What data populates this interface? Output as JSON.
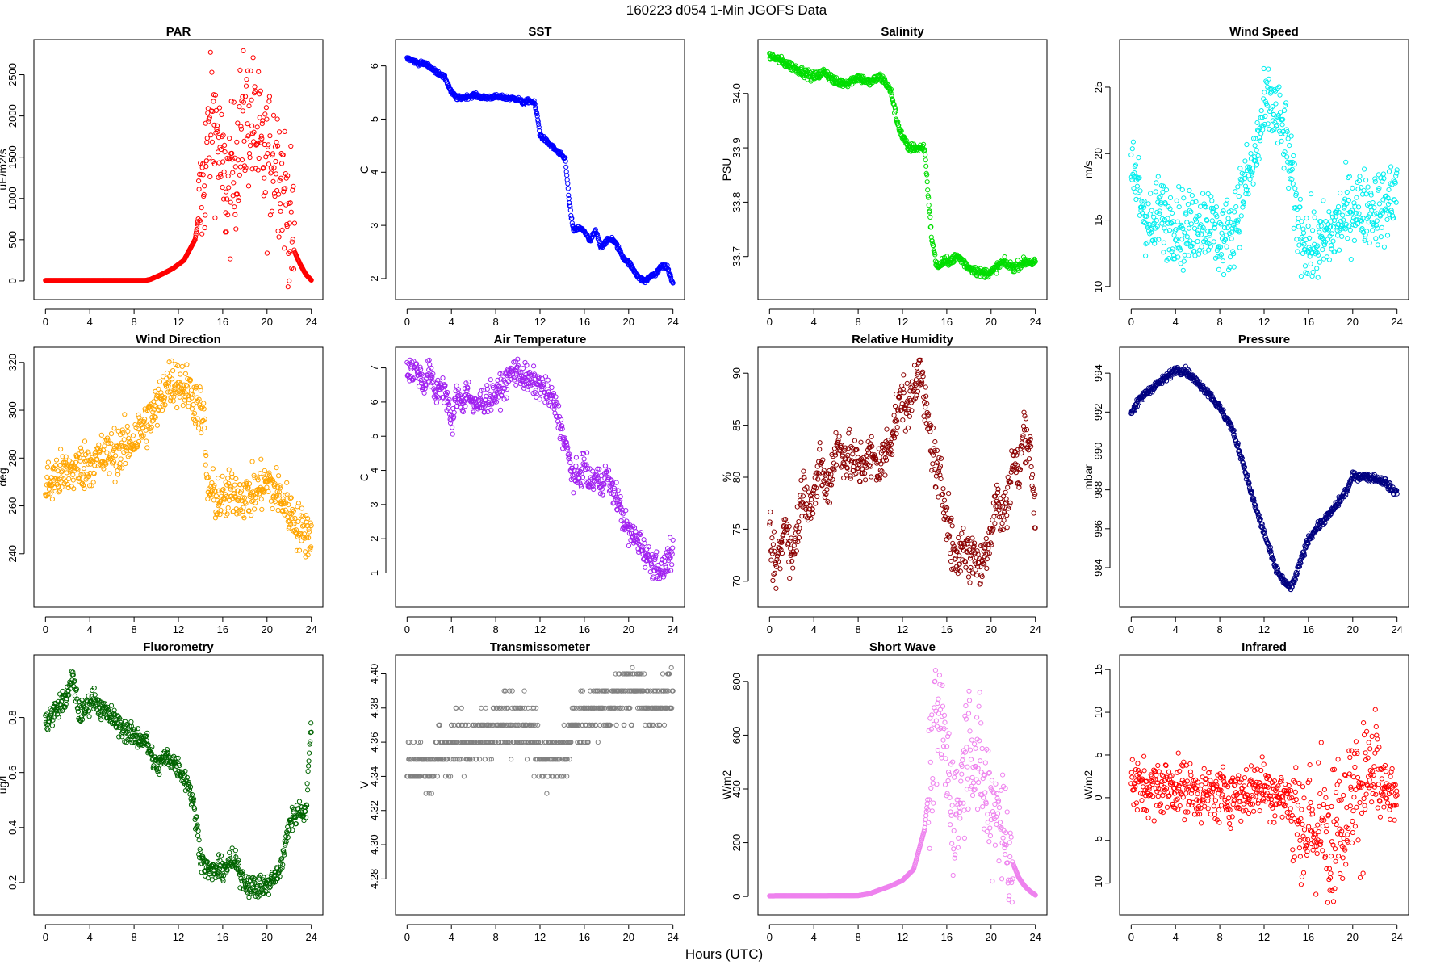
{
  "suptitle": "160223    d054    1-Min   JGOFS Data",
  "xlabel": "Hours (UTC)",
  "chart_data": [
    {
      "type": "scatter",
      "title": "PAR",
      "ylabel": "uE/m2/s",
      "color": "#ff0000",
      "xlim": [
        0,
        24
      ],
      "ylim": [
        -100,
        2800
      ],
      "xticks": [
        0,
        4,
        8,
        12,
        16,
        20,
        24
      ],
      "yticks": [
        0,
        500,
        1000,
        1500,
        2000,
        2500
      ],
      "ytick_labels": [
        "0",
        "500",
        "1000",
        "1500",
        "2000",
        "2500"
      ],
      "trend_x": [
        0,
        9,
        9.5,
        10.5,
        11.5,
        12.5,
        13.5,
        14.2,
        14.6,
        15,
        15.5,
        16,
        16.5,
        17,
        17.5,
        18,
        18.5,
        19,
        19.5,
        20,
        20.5,
        21,
        21.5,
        22,
        22.5,
        23,
        23.5,
        24
      ],
      "trend_y": [
        5,
        5,
        20,
        80,
        150,
        250,
        500,
        1100,
        1600,
        2000,
        1800,
        1200,
        1100,
        1300,
        1800,
        1900,
        2000,
        1800,
        1500,
        1400,
        1600,
        1500,
        1200,
        700,
        350,
        200,
        80,
        10
      ],
      "noise": 420,
      "noise_from": 13.8,
      "noise_to": 22.5
    },
    {
      "type": "scatter",
      "title": "SST",
      "ylabel": "C",
      "color": "#0000ff",
      "xlim": [
        0,
        24
      ],
      "ylim": [
        1.8,
        6.3
      ],
      "xticks": [
        0,
        4,
        8,
        12,
        16,
        20,
        24
      ],
      "yticks": [
        2,
        3,
        4,
        5,
        6
      ],
      "ytick_labels": [
        "2",
        "3",
        "4",
        "5",
        "6"
      ],
      "trend_x": [
        0,
        0.5,
        1,
        1.5,
        2,
        2.5,
        3,
        3.5,
        4,
        4.5,
        5,
        6,
        7,
        8,
        9,
        10,
        10.5,
        11,
        11.5,
        11.8,
        12,
        13,
        13.5,
        14,
        14.3,
        14.6,
        15,
        15.5,
        16,
        16.5,
        17,
        17.5,
        18,
        18.5,
        19,
        19.5,
        20,
        20.5,
        21,
        21.5,
        22,
        22.5,
        23,
        23.5,
        24
      ],
      "trend_y": [
        6.15,
        6.1,
        6.05,
        6.05,
        6.0,
        5.9,
        5.85,
        5.75,
        5.5,
        5.4,
        5.4,
        5.45,
        5.4,
        5.42,
        5.4,
        5.38,
        5.3,
        5.35,
        5.3,
        5.0,
        4.7,
        4.5,
        4.4,
        4.3,
        4.25,
        3.5,
        2.9,
        2.95,
        2.9,
        2.7,
        2.9,
        2.6,
        2.7,
        2.75,
        2.6,
        2.4,
        2.3,
        2.15,
        2.0,
        1.95,
        2.05,
        2.1,
        2.25,
        2.2,
        1.9
      ],
      "noise": 0.02,
      "noise_from": 0,
      "noise_to": 24
    },
    {
      "type": "scatter",
      "title": "Salinity",
      "ylabel": "PSU",
      "color": "#00dd00",
      "xlim": [
        0,
        24
      ],
      "ylim": [
        33.64,
        34.08
      ],
      "xticks": [
        0,
        4,
        8,
        12,
        16,
        20,
        24
      ],
      "yticks": [
        33.7,
        33.8,
        33.9,
        34.0
      ],
      "ytick_labels": [
        "33.7",
        "33.8",
        "33.9",
        "34.0"
      ],
      "trend_x": [
        0,
        1,
        2,
        3,
        4,
        5,
        6,
        7,
        8,
        9,
        10,
        10.5,
        11,
        11.5,
        12,
        12.5,
        13,
        14,
        14.3,
        14.6,
        15,
        15.3,
        15.6,
        16,
        17,
        18,
        19,
        20,
        21,
        22,
        23,
        24
      ],
      "trend_y": [
        34.07,
        34.06,
        34.05,
        34.04,
        34.03,
        34.04,
        34.02,
        34.02,
        34.03,
        34.02,
        34.03,
        34.02,
        34.0,
        33.95,
        33.92,
        33.9,
        33.9,
        33.9,
        33.82,
        33.74,
        33.69,
        33.68,
        33.69,
        33.69,
        33.7,
        33.68,
        33.67,
        33.67,
        33.69,
        33.68,
        33.69,
        33.69
      ],
      "noise": 0.004,
      "noise_from": 0,
      "noise_to": 24
    },
    {
      "type": "scatter",
      "title": "Wind Speed",
      "ylabel": "m/s",
      "color": "#00eeee",
      "xlim": [
        0,
        24
      ],
      "ylim": [
        9.8,
        27.8
      ],
      "xticks": [
        0,
        4,
        8,
        12,
        16,
        20,
        24
      ],
      "yticks": [
        10,
        15,
        20,
        25
      ],
      "ytick_labels": [
        "10",
        "15",
        "20",
        "25"
      ],
      "trend_x": [
        0,
        0.5,
        1,
        1.5,
        2,
        2.5,
        3,
        4,
        5,
        6,
        7,
        8,
        9,
        10,
        11,
        12,
        12.5,
        13,
        14,
        15,
        15.5,
        16,
        17,
        18,
        19,
        20,
        21,
        22,
        23,
        24
      ],
      "trend_y": [
        18,
        18,
        16,
        15,
        14,
        16,
        15,
        15,
        14,
        15,
        15,
        13.5,
        14,
        17,
        19,
        23,
        24,
        23,
        21,
        15,
        14,
        13,
        13,
        14,
        15,
        16,
        16,
        16,
        16,
        17.5
      ],
      "noise": 1.4,
      "noise_from": 0,
      "noise_to": 24
    },
    {
      "type": "scatter",
      "title": "Wind Direction",
      "ylabel": "deg",
      "color": "#ffa500",
      "xlim": [
        0,
        24
      ],
      "ylim": [
        222,
        322
      ],
      "xticks": [
        0,
        4,
        8,
        12,
        16,
        20,
        24
      ],
      "yticks": [
        240,
        260,
        280,
        300,
        320
      ],
      "ytick_labels": [
        "240",
        "260",
        "280",
        "300",
        "320"
      ],
      "trend_x": [
        0,
        1,
        2,
        3,
        4,
        5,
        6,
        7,
        8,
        9,
        10,
        11,
        12,
        13,
        14,
        14.3,
        14.6,
        15,
        16,
        17,
        18,
        19,
        20,
        21,
        22,
        23,
        24
      ],
      "trend_y": [
        268,
        272,
        274,
        276,
        278,
        280,
        282,
        284,
        288,
        294,
        300,
        312,
        312,
        308,
        300,
        296,
        268,
        265,
        262,
        266,
        264,
        266,
        270,
        265,
        258,
        250,
        248
      ],
      "noise": 5,
      "noise_from": 0,
      "noise_to": 24
    },
    {
      "type": "scatter",
      "title": "Air Temperature",
      "ylabel": "C",
      "color": "#a020f0",
      "xlim": [
        0,
        24
      ],
      "ylim": [
        0.3,
        7.3
      ],
      "xticks": [
        0,
        4,
        8,
        12,
        16,
        20,
        24
      ],
      "yticks": [
        1,
        2,
        3,
        4,
        5,
        6,
        7
      ],
      "ytick_labels": [
        "1",
        "2",
        "3",
        "4",
        "5",
        "6",
        "7"
      ],
      "trend_x": [
        0,
        0.5,
        1,
        1.5,
        2,
        2.5,
        3,
        3.5,
        4,
        4.5,
        5,
        5.5,
        6,
        7,
        8,
        9,
        9.5,
        10,
        11,
        12,
        13,
        13.5,
        14,
        14.5,
        15,
        15.5,
        16,
        16.5,
        17,
        17.5,
        18,
        18.5,
        19,
        19.5,
        20,
        21,
        22,
        22.5,
        23,
        23.5,
        24
      ],
      "trend_y": [
        7.0,
        6.95,
        6.9,
        6.5,
        7.0,
        6.2,
        6.5,
        6.3,
        5.3,
        6.2,
        6.0,
        6.4,
        5.8,
        6.1,
        6.2,
        6.6,
        6.9,
        6.9,
        6.6,
        6.5,
        6.1,
        5.8,
        5.1,
        4.5,
        3.8,
        3.8,
        4.2,
        3.6,
        3.8,
        3.6,
        3.9,
        3.4,
        3.2,
        2.6,
        2.2,
        1.9,
        1.3,
        1.3,
        1.0,
        1.4,
        1.6
      ],
      "noise": 0.2,
      "noise_from": 0,
      "noise_to": 24
    },
    {
      "type": "scatter",
      "title": "Relative Humidity",
      "ylabel": "%",
      "color": "#8b0000",
      "xlim": [
        0,
        24
      ],
      "ylim": [
        68.5,
        91.5
      ],
      "xticks": [
        0,
        4,
        8,
        12,
        16,
        20,
        24
      ],
      "yticks": [
        70,
        75,
        80,
        85,
        90
      ],
      "ytick_labels": [
        "70",
        "75",
        "80",
        "85",
        "90"
      ],
      "trend_x": [
        0,
        0.5,
        1,
        1.5,
        2,
        2.5,
        3,
        3.5,
        4,
        4.5,
        5,
        5.5,
        6,
        7,
        8,
        9,
        10,
        11,
        12,
        12.5,
        13,
        13.5,
        14,
        14.5,
        15,
        15.5,
        16,
        16.5,
        17,
        17.5,
        18,
        18.5,
        19,
        19.5,
        20,
        20.5,
        21,
        21.5,
        22,
        22.5,
        23,
        23.5,
        24
      ],
      "trend_y": [
        74,
        71,
        73,
        76,
        72,
        75,
        79,
        78,
        77,
        82,
        79,
        80,
        83,
        82,
        81,
        82,
        81,
        84,
        88,
        86,
        89,
        91,
        87,
        84,
        81,
        79,
        77,
        73,
        72,
        74,
        72,
        73,
        71,
        73,
        75,
        78,
        76,
        78,
        82,
        80,
        85,
        83,
        76
      ],
      "noise": 1.2,
      "noise_from": 0,
      "noise_to": 24
    },
    {
      "type": "scatter",
      "title": "Pressure",
      "ylabel": "mbar",
      "color": "#000080",
      "xlim": [
        0,
        24
      ],
      "ylim": [
        982.5,
        994.8
      ],
      "xticks": [
        0,
        4,
        8,
        12,
        16,
        20,
        24
      ],
      "yticks": [
        984,
        986,
        988,
        990,
        992,
        994
      ],
      "ytick_labels": [
        "984",
        "986",
        "988",
        "990",
        "992",
        "994"
      ],
      "trend_x": [
        0,
        1,
        2,
        3,
        4,
        5,
        6,
        7,
        8,
        9,
        10,
        11,
        12,
        13,
        14,
        14.5,
        15,
        16,
        17,
        18,
        19,
        19.5,
        20,
        21,
        22,
        23,
        23.5,
        24
      ],
      "trend_y": [
        992,
        992.8,
        993.3,
        993.7,
        994.2,
        994.1,
        993.5,
        993,
        992.2,
        991.3,
        989.6,
        987.5,
        985.8,
        984,
        983.1,
        983,
        983.8,
        985.5,
        986.2,
        986.8,
        987.6,
        988,
        988.7,
        988.7,
        988.6,
        988.4,
        988,
        987.9
      ],
      "noise": 0.1,
      "noise_from": 0,
      "noise_to": 24
    },
    {
      "type": "scatter",
      "title": "Fluorometry",
      "ylabel": "ug/l",
      "color": "#006400",
      "xlim": [
        0,
        24
      ],
      "ylim": [
        0.12,
        0.99
      ],
      "xticks": [
        0,
        4,
        8,
        12,
        16,
        20,
        24
      ],
      "yticks": [
        0.2,
        0.4,
        0.6,
        0.8
      ],
      "ytick_labels": [
        "0.2",
        "0.4",
        "0.6",
        "0.8"
      ],
      "trend_x": [
        0,
        1,
        2,
        2.5,
        3,
        3.5,
        4,
        4.5,
        5,
        6,
        7,
        8,
        9,
        10,
        11,
        12,
        13,
        13.5,
        14,
        14.5,
        15,
        16,
        17,
        18,
        19,
        20,
        21,
        21.5,
        22,
        22.5,
        23,
        23.5,
        24
      ],
      "trend_y": [
        0.78,
        0.83,
        0.88,
        0.95,
        0.82,
        0.82,
        0.86,
        0.87,
        0.83,
        0.8,
        0.76,
        0.73,
        0.72,
        0.62,
        0.66,
        0.62,
        0.55,
        0.45,
        0.3,
        0.25,
        0.24,
        0.25,
        0.28,
        0.2,
        0.18,
        0.19,
        0.23,
        0.3,
        0.42,
        0.44,
        0.47,
        0.45,
        0.78
      ],
      "noise": 0.02,
      "noise_from": 0,
      "noise_to": 24
    },
    {
      "type": "scatter",
      "title": "Transmissometer",
      "ylabel": "V",
      "color": "#808080",
      "xlim": [
        0,
        24
      ],
      "ylim": [
        4.265,
        4.405
      ],
      "xticks": [
        0,
        4,
        8,
        12,
        16,
        20,
        24
      ],
      "yticks": [
        4.28,
        4.3,
        4.32,
        4.34,
        4.36,
        4.38,
        4.4
      ],
      "ytick_labels": [
        "4.28",
        "4.30",
        "4.32",
        "4.34",
        "4.36",
        "4.38",
        "4.40"
      ],
      "trend_x": [
        0,
        2,
        3,
        4,
        5,
        6,
        7,
        8,
        9,
        10,
        11,
        12,
        13,
        14,
        15,
        16,
        17,
        18,
        19,
        20,
        21,
        22,
        23,
        24
      ],
      "trend_y": [
        4.35,
        4.345,
        4.355,
        4.36,
        4.36,
        4.36,
        4.363,
        4.37,
        4.37,
        4.37,
        4.37,
        4.35,
        4.35,
        4.35,
        4.37,
        4.37,
        4.38,
        4.38,
        4.385,
        4.39,
        4.39,
        4.38,
        4.385,
        4.39
      ],
      "noise": 0.008,
      "noise_from": 0,
      "noise_to": 24,
      "quantize": 0.01
    },
    {
      "type": "scatter",
      "title": "Short Wave",
      "ylabel": "W/m2",
      "color": "#ee82ee",
      "xlim": [
        0,
        24
      ],
      "ylim": [
        -30,
        860
      ],
      "xticks": [
        0,
        4,
        8,
        12,
        16,
        20,
        24
      ],
      "yticks": [
        0,
        200,
        400,
        600,
        800
      ],
      "ytick_labels": [
        "0",
        "200",
        "400",
        "600",
        "800"
      ],
      "trend_x": [
        0,
        8,
        9,
        10,
        11,
        12,
        13,
        14,
        14.5,
        15,
        15.5,
        16,
        16.5,
        17,
        17.5,
        18,
        18.5,
        19,
        19.5,
        20,
        20.5,
        21,
        21.5,
        22,
        22.5,
        23,
        23.5,
        24
      ],
      "trend_y": [
        2,
        3,
        10,
        25,
        40,
        60,
        100,
        250,
        450,
        600,
        650,
        500,
        350,
        300,
        500,
        600,
        550,
        450,
        400,
        300,
        380,
        250,
        200,
        120,
        70,
        40,
        20,
        5
      ],
      "noise": 120,
      "noise_from": 14.3,
      "noise_to": 22
    },
    {
      "type": "scatter",
      "title": "Infrared",
      "ylabel": "W/m2",
      "color": "#ff0000",
      "xlim": [
        0,
        24
      ],
      "ylim": [
        -12.5,
        15.5
      ],
      "xticks": [
        0,
        4,
        8,
        12,
        16,
        20,
        24
      ],
      "yticks": [
        -10,
        -5,
        0,
        5,
        10,
        15
      ],
      "ytick_labels": [
        "-10",
        "-5",
        "0",
        "5",
        "10",
        "15"
      ],
      "trend_x": [
        0,
        2,
        4,
        6,
        8,
        10,
        12,
        13,
        14,
        15,
        16,
        17,
        18,
        19,
        20,
        21,
        22,
        23,
        24
      ],
      "trend_y": [
        1.5,
        1,
        1.5,
        0.5,
        0.3,
        0.5,
        1.5,
        0.5,
        0,
        -2,
        -4,
        -3,
        -3.5,
        -2,
        0,
        2.5,
        2.5,
        0.5,
        0
      ],
      "noise": 1.6,
      "noise_from": 0,
      "noise_to": 24,
      "wild_from": 14.5,
      "wild_to": 22.5,
      "wild_noise": 3.5
    }
  ]
}
